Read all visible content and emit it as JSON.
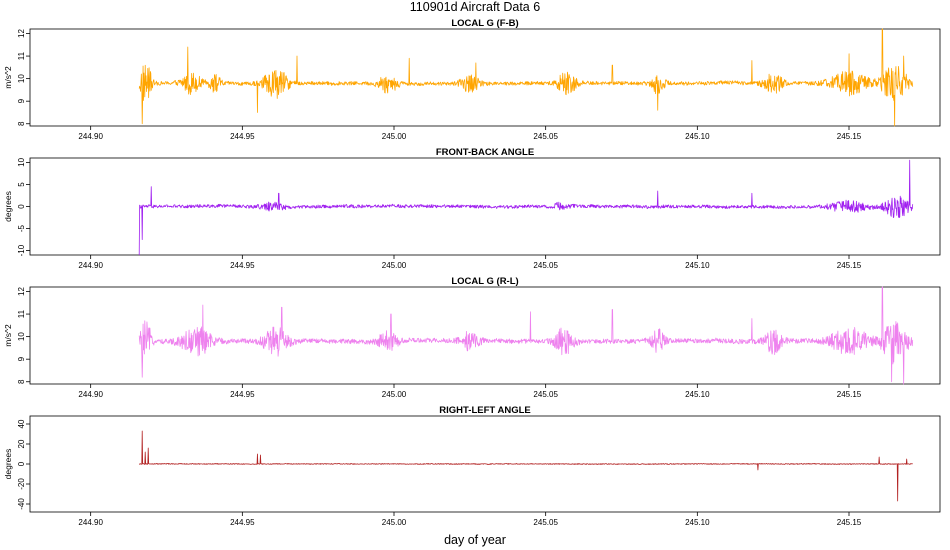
{
  "title": "110901d   Aircraft Data 6",
  "xlabel": "day of year",
  "chart_data": [
    {
      "type": "line",
      "title": "LOCAL G (F-B)",
      "ylabel": "m/s^2",
      "color": "#FFA500",
      "xlim": [
        244.88,
        245.18
      ],
      "ylim": [
        7.9,
        12.2
      ],
      "xticks": [
        "244.90",
        "244.95",
        "245.00",
        "245.05",
        "245.10",
        "245.15"
      ],
      "yticks": [
        "8",
        "9",
        "10",
        "11",
        "12"
      ],
      "x_range": [
        244.916,
        245.171
      ],
      "baseline": 9.8,
      "noise": 0.08,
      "bursts": [
        {
          "x": 244.918,
          "w": 0.002,
          "amp": 0.9
        },
        {
          "x": 244.933,
          "w": 0.003,
          "amp": 0.45
        },
        {
          "x": 244.941,
          "w": 0.002,
          "amp": 0.35
        },
        {
          "x": 244.961,
          "w": 0.004,
          "amp": 0.6
        },
        {
          "x": 244.998,
          "w": 0.003,
          "amp": 0.4
        },
        {
          "x": 245.025,
          "w": 0.003,
          "amp": 0.35
        },
        {
          "x": 245.057,
          "w": 0.003,
          "amp": 0.55
        },
        {
          "x": 245.087,
          "w": 0.002,
          "amp": 0.45
        },
        {
          "x": 245.125,
          "w": 0.003,
          "amp": 0.45
        },
        {
          "x": 245.15,
          "w": 0.006,
          "amp": 0.5
        },
        {
          "x": 245.165,
          "w": 0.004,
          "amp": 0.8
        }
      ],
      "spikes": [
        {
          "x": 244.917,
          "y": 8.0
        },
        {
          "x": 244.932,
          "y": 11.4
        },
        {
          "x": 244.955,
          "y": 8.5
        },
        {
          "x": 244.968,
          "y": 11.0
        },
        {
          "x": 245.005,
          "y": 10.9
        },
        {
          "x": 245.027,
          "y": 10.7
        },
        {
          "x": 245.072,
          "y": 10.6
        },
        {
          "x": 245.087,
          "y": 8.6
        },
        {
          "x": 245.118,
          "y": 10.8
        },
        {
          "x": 245.15,
          "y": 11.1
        },
        {
          "x": 245.161,
          "y": 12.2
        },
        {
          "x": 245.165,
          "y": 7.9
        },
        {
          "x": 245.168,
          "y": 11.0
        }
      ]
    },
    {
      "type": "line",
      "title": "FRONT-BACK ANGLE",
      "ylabel": "degrees",
      "color": "#A020F0",
      "xlim": [
        244.88,
        245.18
      ],
      "ylim": [
        -11,
        11
      ],
      "xticks": [
        "244.90",
        "244.95",
        "245.00",
        "245.05",
        "245.10",
        "245.15"
      ],
      "yticks": [
        "-10",
        "-5",
        "0",
        "5",
        "10"
      ],
      "x_range": [
        244.916,
        245.171
      ],
      "baseline": 0.0,
      "noise": 0.35,
      "bursts": [
        {
          "x": 244.96,
          "w": 0.004,
          "amp": 0.8
        },
        {
          "x": 245.055,
          "w": 0.003,
          "amp": 0.6
        },
        {
          "x": 245.15,
          "w": 0.006,
          "amp": 1.2
        },
        {
          "x": 245.166,
          "w": 0.004,
          "amp": 2.5
        }
      ],
      "spikes": [
        {
          "x": 244.916,
          "y": -11.0
        },
        {
          "x": 244.917,
          "y": -7.5
        },
        {
          "x": 244.92,
          "y": 4.5
        },
        {
          "x": 244.962,
          "y": 3.0
        },
        {
          "x": 245.087,
          "y": 3.5
        },
        {
          "x": 245.118,
          "y": 3.0
        },
        {
          "x": 245.17,
          "y": 10.5
        }
      ]
    },
    {
      "type": "line",
      "title": "LOCAL G (R-L)",
      "ylabel": "m/s^2",
      "color": "#EE82EE",
      "xlim": [
        244.88,
        245.18
      ],
      "ylim": [
        7.9,
        12.2
      ],
      "xticks": [
        "244.90",
        "244.95",
        "245.00",
        "245.05",
        "245.10",
        "245.15"
      ],
      "yticks": [
        "8",
        "9",
        "10",
        "11",
        "12"
      ],
      "x_range": [
        244.916,
        245.171
      ],
      "baseline": 9.8,
      "noise": 0.1,
      "bursts": [
        {
          "x": 244.918,
          "w": 0.002,
          "amp": 0.8
        },
        {
          "x": 244.935,
          "w": 0.005,
          "amp": 0.6
        },
        {
          "x": 244.961,
          "w": 0.004,
          "amp": 0.6
        },
        {
          "x": 244.998,
          "w": 0.003,
          "amp": 0.45
        },
        {
          "x": 245.025,
          "w": 0.003,
          "amp": 0.4
        },
        {
          "x": 245.056,
          "w": 0.003,
          "amp": 0.55
        },
        {
          "x": 245.087,
          "w": 0.002,
          "amp": 0.5
        },
        {
          "x": 245.125,
          "w": 0.003,
          "amp": 0.5
        },
        {
          "x": 245.15,
          "w": 0.006,
          "amp": 0.6
        },
        {
          "x": 245.165,
          "w": 0.004,
          "amp": 0.9
        }
      ],
      "spikes": [
        {
          "x": 244.917,
          "y": 8.2
        },
        {
          "x": 244.937,
          "y": 11.4
        },
        {
          "x": 244.963,
          "y": 11.3
        },
        {
          "x": 244.999,
          "y": 11.0
        },
        {
          "x": 245.045,
          "y": 11.1
        },
        {
          "x": 245.072,
          "y": 11.2
        },
        {
          "x": 245.118,
          "y": 10.8
        },
        {
          "x": 245.161,
          "y": 12.2
        },
        {
          "x": 245.164,
          "y": 8.0
        },
        {
          "x": 245.168,
          "y": 7.9
        }
      ]
    },
    {
      "type": "line",
      "title": "RIGHT-LEFT ANGLE",
      "ylabel": "degrees",
      "color": "#B22222",
      "xlim": [
        244.88,
        245.18
      ],
      "ylim": [
        -48,
        48
      ],
      "xticks": [
        "244.90",
        "244.95",
        "245.00",
        "245.05",
        "245.10",
        "245.15"
      ],
      "yticks": [
        "-40",
        "-20",
        "0",
        "20",
        "40"
      ],
      "x_range": [
        244.916,
        245.171
      ],
      "baseline": 0.0,
      "noise": 0.4,
      "bursts": [],
      "spikes": [
        {
          "x": 244.917,
          "y": 33
        },
        {
          "x": 244.918,
          "y": 12
        },
        {
          "x": 244.919,
          "y": 16
        },
        {
          "x": 244.955,
          "y": 10
        },
        {
          "x": 244.956,
          "y": 9
        },
        {
          "x": 245.12,
          "y": -6
        },
        {
          "x": 245.16,
          "y": 7
        },
        {
          "x": 245.166,
          "y": -37
        },
        {
          "x": 245.169,
          "y": 5
        }
      ]
    }
  ]
}
